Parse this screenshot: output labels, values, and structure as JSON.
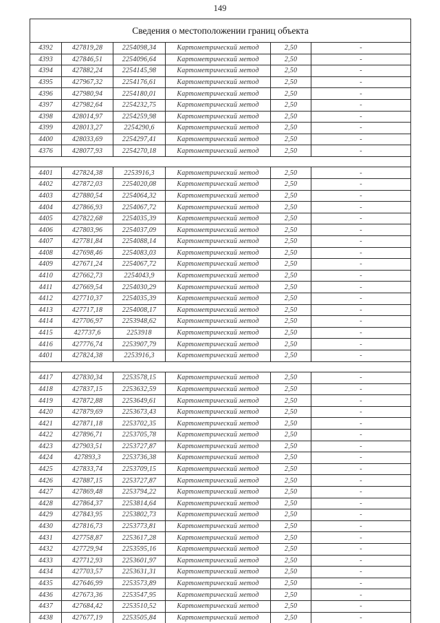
{
  "page": {
    "number": "149",
    "title": "Сведения о местоположении границ объекта"
  },
  "table": {
    "method": "Картометрический метод",
    "precision": "2,50",
    "dash": "-",
    "columns": [
      "point_number",
      "x",
      "y",
      "method",
      "precision",
      "note"
    ],
    "blocks": [
      {
        "rows": [
          [
            "4392",
            "427819,28",
            "2254098,34"
          ],
          [
            "4393",
            "427846,51",
            "2254096,64"
          ],
          [
            "4394",
            "427882,24",
            "2254145,98"
          ],
          [
            "4395",
            "427967,32",
            "2254176,61"
          ],
          [
            "4396",
            "427980,94",
            "2254180,01"
          ],
          [
            "4397",
            "427982,64",
            "2254232,75"
          ],
          [
            "4398",
            "428014,97",
            "2254259,98"
          ],
          [
            "4399",
            "428013,27",
            "2254290,6"
          ],
          [
            "4400",
            "428033,69",
            "2254297,41"
          ],
          [
            "4376",
            "428077,93",
            "2254270,18"
          ]
        ]
      },
      {
        "rows": [
          [
            "4401",
            "427824,38",
            "2253916,3"
          ],
          [
            "4402",
            "427872,03",
            "2254020,08"
          ],
          [
            "4403",
            "427880,54",
            "2254064,32"
          ],
          [
            "4404",
            "427866,93",
            "2254067,72"
          ],
          [
            "4405",
            "427822,68",
            "2254035,39"
          ],
          [
            "4406",
            "427803,96",
            "2254037,09"
          ],
          [
            "4407",
            "427781,84",
            "2254088,14"
          ],
          [
            "4408",
            "427698,46",
            "2254083,03"
          ],
          [
            "4409",
            "427671,24",
            "2254067,72"
          ],
          [
            "4410",
            "427662,73",
            "2254043,9"
          ],
          [
            "4411",
            "427669,54",
            "2254030,29"
          ],
          [
            "4412",
            "427710,37",
            "2254035,39"
          ],
          [
            "4413",
            "427717,18",
            "2254008,17"
          ],
          [
            "4414",
            "427706,97",
            "2253948,62"
          ],
          [
            "4415",
            "427737,6",
            "2253918"
          ],
          [
            "4416",
            "427776,74",
            "2253907,79"
          ],
          [
            "4401",
            "427824,38",
            "2253916,3"
          ]
        ]
      },
      {
        "rows": [
          [
            "4417",
            "427830,34",
            "2253578,15"
          ],
          [
            "4418",
            "427837,15",
            "2253632,59"
          ],
          [
            "4419",
            "427872,88",
            "2253649,61"
          ],
          [
            "4420",
            "427879,69",
            "2253673,43"
          ],
          [
            "4421",
            "427871,18",
            "2253702,35"
          ],
          [
            "4422",
            "427896,71",
            "2253705,78"
          ],
          [
            "4423",
            "427903,51",
            "2253727,87"
          ],
          [
            "4424",
            "427893,3",
            "2253736,38"
          ],
          [
            "4425",
            "427833,74",
            "2253709,15"
          ],
          [
            "4426",
            "427887,15",
            "2253727,87"
          ],
          [
            "4427",
            "427869,48",
            "2253794,22"
          ],
          [
            "4428",
            "427864,37",
            "2253814,64"
          ],
          [
            "4429",
            "427843,95",
            "2253802,73"
          ],
          [
            "4430",
            "427816,73",
            "2253773,81"
          ],
          [
            "4431",
            "427758,87",
            "2253617,28"
          ],
          [
            "4432",
            "427729,94",
            "2253595,16"
          ],
          [
            "4433",
            "427712,93",
            "2253601,97"
          ],
          [
            "4434",
            "427703,57",
            "2253631,31"
          ],
          [
            "4435",
            "427646,99",
            "2253573,89"
          ],
          [
            "4436",
            "427673,36",
            "2253547,95"
          ],
          [
            "4437",
            "427684,42",
            "2253510,52"
          ],
          [
            "4438",
            "427677,19",
            "2253505,84"
          ]
        ]
      }
    ]
  }
}
